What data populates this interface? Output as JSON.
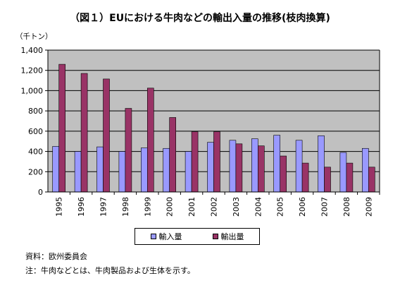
{
  "title": "（図１）EUにおける牛肉などの輸出入量の推移(枝肉換算)",
  "unit": "（千トン）",
  "source": "資料：欧州委員会",
  "note": "注：牛肉などとは、牛肉製品および生体を示す。",
  "colors": {
    "import": "#9999FF",
    "export": "#993366",
    "plot_bg": "#C0C0C0",
    "gridline": "#000000"
  },
  "chart_data": {
    "type": "bar",
    "categories": [
      "1995",
      "1996",
      "1997",
      "1998",
      "1999",
      "2000",
      "2001",
      "2002",
      "2003",
      "2004",
      "2005",
      "2006",
      "2007",
      "2008",
      "2009"
    ],
    "series": [
      {
        "name": "輸入量",
        "values": [
          450,
          400,
          445,
          400,
          435,
          430,
          400,
          490,
          510,
          525,
          560,
          510,
          555,
          390,
          430
        ]
      },
      {
        "name": "輸出量",
        "values": [
          1260,
          1170,
          1115,
          825,
          1025,
          735,
          595,
          595,
          475,
          455,
          355,
          285,
          245,
          285,
          245
        ]
      }
    ],
    "ylim": [
      0,
      1400
    ],
    "yticks": [
      0,
      200,
      400,
      600,
      800,
      1000,
      1200,
      1400
    ],
    "ytick_labels": [
      "0",
      "200",
      "400",
      "600",
      "800",
      "1,000",
      "1,200",
      "1,400"
    ],
    "grid": true,
    "legend": "bottom"
  }
}
